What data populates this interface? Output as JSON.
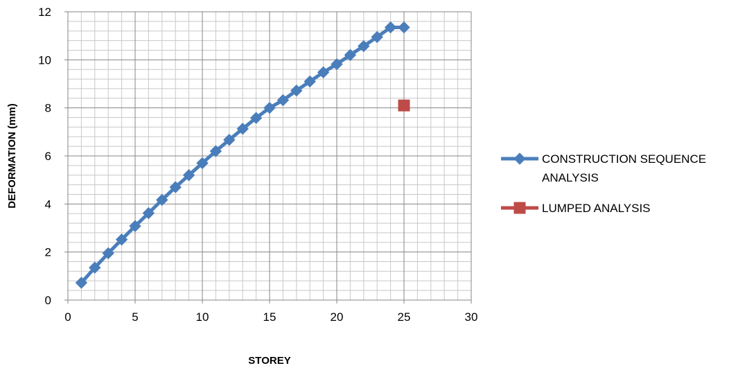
{
  "chart_data": {
    "type": "line",
    "title": "",
    "xlabel": "STOREY",
    "ylabel": "DEFORMATION (mm)",
    "xlim": [
      0,
      30
    ],
    "ylim": [
      0,
      12
    ],
    "x_major_ticks": [
      0,
      5,
      10,
      15,
      20,
      25,
      30
    ],
    "y_major_ticks": [
      0,
      2,
      4,
      6,
      8,
      10,
      12
    ],
    "x_tick_labels": [
      "0",
      "5",
      "10",
      "15",
      "20",
      "25",
      "30"
    ],
    "y_tick_labels": [
      "0",
      "2",
      "4",
      "6",
      "8",
      "10",
      "12"
    ],
    "grid": "major and minor",
    "legend_position": "right",
    "series": [
      {
        "name": "CONSTRUCTION SEQUENCE ANALYSIS",
        "legend_lines": [
          "CONSTRUCTION SEQUENCE",
          "ANALYSIS"
        ],
        "color": "#4a7ebb",
        "marker": "diamond",
        "x": [
          1,
          2,
          3,
          4,
          5,
          6,
          7,
          8,
          9,
          10,
          11,
          12,
          13,
          14,
          15,
          16,
          17,
          18,
          19,
          20,
          21,
          22,
          23,
          24,
          25
        ],
        "y": [
          0.72,
          1.35,
          1.95,
          2.52,
          3.08,
          3.62,
          4.17,
          4.7,
          5.2,
          5.7,
          6.2,
          6.67,
          7.13,
          7.58,
          8.0,
          8.32,
          8.72,
          9.1,
          9.48,
          9.82,
          10.2,
          10.57,
          10.95,
          11.35,
          11.35
        ]
      },
      {
        "name": "LUMPED ANALYSIS",
        "legend_lines": [
          "LUMPED ANALYSIS"
        ],
        "color": "#be4b48",
        "marker": "square",
        "x": [
          25
        ],
        "y": [
          8.1
        ]
      }
    ]
  }
}
